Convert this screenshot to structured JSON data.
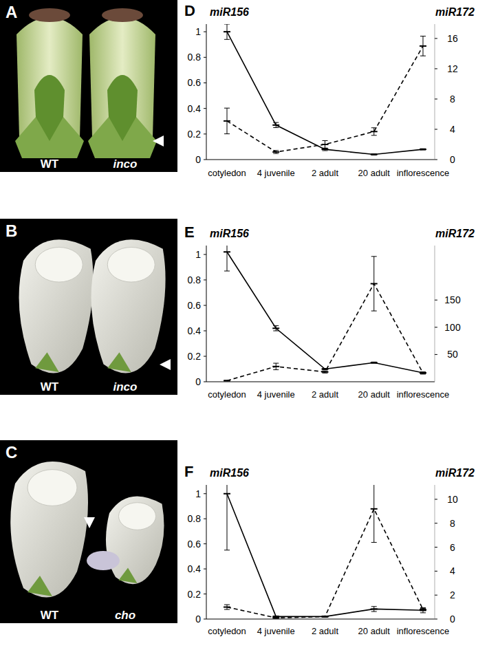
{
  "chart_data": [
    {
      "type": "line",
      "title": "D",
      "categories": [
        "cotyledon",
        "4 juvenile",
        "2 adult",
        "20 adult",
        "inflorescence"
      ],
      "ylim": [
        0,
        1.06
      ],
      "yticks": [
        0,
        0.2,
        0.4,
        0.6,
        0.8,
        1
      ],
      "y2lim": [
        0,
        17.9
      ],
      "y2ticks": [
        0,
        4,
        8,
        12,
        16
      ],
      "series": [
        {
          "name": "miR156",
          "color": "#000000",
          "line_style": "solid",
          "marker": "dash",
          "values": [
            1.0,
            0.27,
            0.08,
            0.04,
            0.08
          ],
          "errors": [
            0.06,
            0.02,
            0.01,
            0.005,
            0.005
          ]
        },
        {
          "name": "miR172",
          "color": "#000000",
          "line_style": "dashed",
          "marker": "dash",
          "axis": "y2",
          "values": [
            5.1,
            1.0,
            2.0,
            3.7,
            15.0
          ],
          "errors": [
            1.7,
            0.2,
            0.5,
            0.5,
            1.3
          ]
        }
      ]
    },
    {
      "type": "line",
      "title": "E",
      "categories": [
        "cotyledon",
        "4 juvenile",
        "2 adult",
        "20 adult",
        "inflorescence"
      ],
      "ylim": [
        0,
        1.07
      ],
      "yticks": [
        0,
        0.2,
        0.4,
        0.6,
        0.8,
        1
      ],
      "y2lim": [
        0,
        250
      ],
      "y2ticks": [
        50,
        100,
        150
      ],
      "series": [
        {
          "name": "miR156",
          "color": "#000000",
          "line_style": "solid",
          "marker": "dash",
          "values": [
            1.02,
            0.42,
            0.1,
            0.15,
            0.07
          ],
          "errors": [
            0.15,
            0.02,
            0.005,
            0.005,
            0.005
          ]
        },
        {
          "name": "miR172",
          "color": "#000000",
          "line_style": "dashed",
          "marker": "dash",
          "axis": "y2",
          "values": [
            2,
            28,
            18,
            180,
            16
          ],
          "errors": [
            0.5,
            6,
            2,
            50,
            2
          ]
        }
      ]
    },
    {
      "type": "line",
      "title": "F",
      "categories": [
        "cotyledon",
        "4 juvenile",
        "2 adult",
        "20 adult",
        "inflorescence"
      ],
      "ylim": [
        0,
        1.07
      ],
      "yticks": [
        0,
        0.2,
        0.4,
        0.6,
        0.8,
        1
      ],
      "y2lim": [
        0,
        11.2
      ],
      "y2ticks": [
        0,
        2,
        4,
        6,
        8,
        10
      ],
      "series": [
        {
          "name": "miR156",
          "color": "#000000",
          "line_style": "solid",
          "marker": "dash",
          "values": [
            1.0,
            0.02,
            0.02,
            0.08,
            0.07
          ],
          "errors": [
            0.45,
            0.005,
            0.005,
            0.02,
            0.02
          ]
        },
        {
          "name": "miR172",
          "color": "#000000",
          "line_style": "dashed",
          "marker": "dash",
          "axis": "y2",
          "values": [
            1.0,
            0.1,
            0.2,
            9.2,
            0.8
          ],
          "errors": [
            0.2,
            0.05,
            0.05,
            2.8,
            0.1
          ]
        }
      ]
    }
  ],
  "photos": [
    {
      "label": "A",
      "left": "WT",
      "right": "inco"
    },
    {
      "label": "B",
      "left": "WT",
      "right": "inco"
    },
    {
      "label": "C",
      "left": "WT",
      "right": "cho"
    }
  ]
}
